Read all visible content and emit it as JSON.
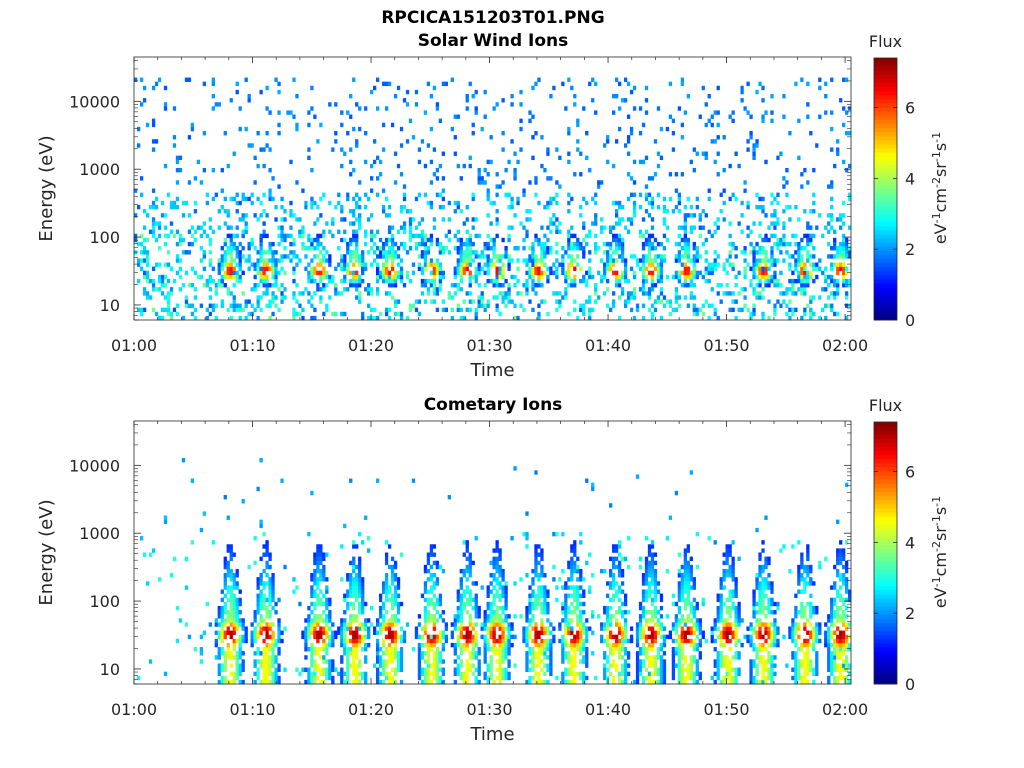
{
  "figure": {
    "title": "RPCICA151203T01.PNG"
  },
  "colorbar": {
    "label": "Flux",
    "unit_main": "eV",
    "unit_parts": [
      {
        "t": "eV",
        "sup": "-1"
      },
      {
        "t": "cm",
        "sup": "-2"
      },
      {
        "t": "sr",
        "sup": "-1"
      },
      {
        "t": "s",
        "sup": "-1"
      }
    ],
    "range": [
      0,
      7.4
    ],
    "ticks": [
      "0",
      "2",
      "4",
      "6"
    ],
    "tick_values": [
      0,
      2,
      4,
      6
    ],
    "colormap": "jet"
  },
  "chart_data": [
    {
      "type": "heatmap",
      "title": "Solar Wind Ions",
      "xlabel": "Time",
      "ylabel": "Energy (eV)",
      "x_range_minutes": [
        0,
        60.5
      ],
      "x_ticks": [
        "01:00",
        "01:10",
        "01:20",
        "01:30",
        "01:40",
        "01:50",
        "02:00"
      ],
      "x_tick_minutes": [
        0,
        10,
        20,
        30,
        40,
        50,
        60
      ],
      "y_scale": "log",
      "y_range_eV": [
        6,
        45000
      ],
      "y_ticks": [
        "10",
        "100",
        "1000",
        "10000"
      ],
      "y_tick_values": [
        10,
        100,
        1000,
        10000
      ],
      "colorbar_label": "Flux",
      "bursts_minutes": [
        8,
        11,
        15.5,
        18.5,
        21.5,
        25,
        28,
        30.5,
        34,
        37,
        40.5,
        43.5,
        46.5,
        53,
        56.5,
        59.5
      ],
      "peak_energy_eV": 30,
      "peak_flux": 6.6,
      "background": "sparse blue counts 100–30000 eV, cyan/green band 10–100 eV"
    },
    {
      "type": "heatmap",
      "title": "Cometary Ions",
      "xlabel": "Time",
      "ylabel": "Energy (eV)",
      "x_range_minutes": [
        0,
        60.5
      ],
      "x_ticks": [
        "01:00",
        "01:10",
        "01:20",
        "01:30",
        "01:40",
        "01:50",
        "02:00"
      ],
      "x_tick_minutes": [
        0,
        10,
        20,
        30,
        40,
        50,
        60
      ],
      "y_scale": "log",
      "y_range_eV": [
        6,
        45000
      ],
      "y_ticks": [
        "10",
        "100",
        "1000",
        "10000"
      ],
      "y_tick_values": [
        10,
        100,
        1000,
        10000
      ],
      "colorbar_label": "Flux",
      "bursts_minutes": [
        8,
        11,
        15.5,
        18.5,
        21.5,
        25,
        28,
        30.5,
        34,
        37,
        40.5,
        43.5,
        46.5,
        50,
        53,
        56.5,
        59.5
      ],
      "peak_energy_eV": 30,
      "peak_flux": 7.2,
      "background": "dense plumes 10–800 eV, sparse points up to 10000 eV"
    }
  ]
}
